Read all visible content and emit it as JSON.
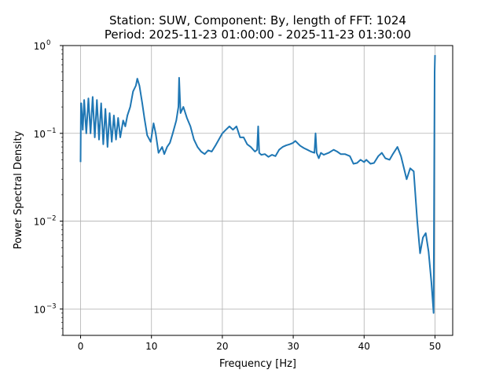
{
  "chart_data": {
    "type": "line",
    "title": [
      "Station: SUW, Component: By, length of FFT: 1024",
      "Period: 2025-11-23 01:00:00 - 2025-11-23 01:30:00"
    ],
    "xlabel": "Frequency [Hz]",
    "ylabel": "Power Spectral Density",
    "xlim": [
      -2.5,
      52.5
    ],
    "ylim": [
      0.0005,
      1
    ],
    "yscale": "log",
    "grid": true,
    "xticks": [
      0,
      10,
      20,
      30,
      40,
      50
    ],
    "xtick_labels": [
      "0",
      "10",
      "20",
      "30",
      "40",
      "50"
    ],
    "yticks": [
      0.001,
      0.01,
      0.1,
      1
    ],
    "ytick_labels": [
      [
        "10",
        "−3"
      ],
      [
        "10",
        "−2"
      ],
      [
        "10",
        "−1"
      ],
      [
        "10",
        "0"
      ]
    ],
    "line_color": "#1f77b4",
    "series": [
      {
        "name": "PSD",
        "x": [
          0,
          0.05,
          0.1,
          0.3,
          0.5,
          0.8,
          1.1,
          1.4,
          1.7,
          2.0,
          2.3,
          2.6,
          2.9,
          3.2,
          3.5,
          3.8,
          4.1,
          4.4,
          4.7,
          5.0,
          5.3,
          5.6,
          6.0,
          6.3,
          6.6,
          7.0,
          7.4,
          7.8,
          8.0,
          8.3,
          8.7,
          9.0,
          9.4,
          9.9,
          10.3,
          10.6,
          11,
          11.5,
          11.8,
          12.2,
          12.6,
          13,
          13.5,
          13.8,
          13.9,
          14.1,
          14.5,
          15,
          15.5,
          16,
          16.5,
          17,
          17.5,
          18,
          18.5,
          19,
          19.5,
          20,
          20.5,
          21,
          21.5,
          22,
          22.5,
          23,
          23.5,
          24,
          24.6,
          24.9,
          25.05,
          25.2,
          25.5,
          26,
          26.5,
          27,
          27.5,
          28,
          28.5,
          29,
          29.5,
          30,
          30.3,
          30.7,
          31,
          31.5,
          32,
          32.5,
          33,
          33.15,
          33.3,
          33.6,
          33.9,
          34.3,
          35,
          35.7,
          36.2,
          36.7,
          37.3,
          38,
          38.5,
          39,
          39.5,
          40,
          40.3,
          40.9,
          41.4,
          42,
          42.5,
          43,
          43.6,
          44,
          44.7,
          45.2,
          46,
          46.5,
          47,
          47.5,
          47.9,
          48.3,
          48.7,
          49.1,
          49.5,
          49.8,
          49.95,
          50
        ],
        "y": [
          0.047,
          0.22,
          0.22,
          0.11,
          0.24,
          0.1,
          0.25,
          0.1,
          0.26,
          0.09,
          0.24,
          0.085,
          0.22,
          0.075,
          0.19,
          0.07,
          0.17,
          0.08,
          0.16,
          0.085,
          0.15,
          0.09,
          0.14,
          0.12,
          0.16,
          0.2,
          0.3,
          0.35,
          0.42,
          0.35,
          0.22,
          0.15,
          0.095,
          0.08,
          0.13,
          0.1,
          0.06,
          0.07,
          0.058,
          0.07,
          0.078,
          0.1,
          0.14,
          0.2,
          0.43,
          0.17,
          0.2,
          0.15,
          0.12,
          0.085,
          0.07,
          0.062,
          0.058,
          0.064,
          0.062,
          0.072,
          0.085,
          0.1,
          0.11,
          0.12,
          0.11,
          0.12,
          0.09,
          0.09,
          0.075,
          0.07,
          0.062,
          0.065,
          0.12,
          0.06,
          0.057,
          0.058,
          0.054,
          0.057,
          0.055,
          0.065,
          0.07,
          0.073,
          0.075,
          0.078,
          0.082,
          0.076,
          0.072,
          0.068,
          0.065,
          0.062,
          0.06,
          0.1,
          0.06,
          0.052,
          0.06,
          0.057,
          0.06,
          0.065,
          0.062,
          0.058,
          0.058,
          0.055,
          0.045,
          0.046,
          0.05,
          0.047,
          0.05,
          0.045,
          0.046,
          0.055,
          0.06,
          0.052,
          0.05,
          0.057,
          0.07,
          0.055,
          0.03,
          0.04,
          0.037,
          0.01,
          0.0043,
          0.0065,
          0.0073,
          0.0045,
          0.002,
          0.0009,
          0.5,
          0.78
        ]
      }
    ]
  }
}
